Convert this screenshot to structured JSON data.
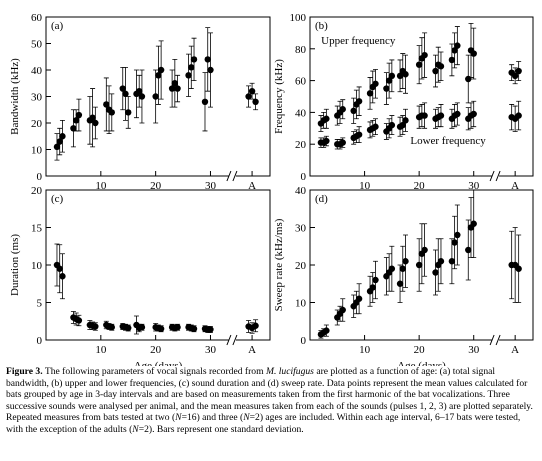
{
  "chart_data": [
    {
      "type": "scatter",
      "label": "(a)",
      "ylabel": "Bandwidth (kHz)",
      "x": [
        2,
        2.5,
        3,
        5,
        5.5,
        6,
        8,
        8.5,
        9,
        11,
        11.5,
        12,
        14,
        14.5,
        15,
        16.5,
        17,
        17.5,
        20,
        20.5,
        21,
        23,
        23.5,
        24,
        26,
        26.5,
        27,
        29,
        29.5,
        30
      ],
      "xlim": [
        0,
        33
      ],
      "xticks": [
        10,
        20,
        30
      ],
      "adult_label": "A",
      "ylim": [
        0,
        60
      ],
      "yticks": [
        0,
        10,
        20,
        30,
        40,
        50,
        60
      ],
      "series": [
        {
          "color": "#000000",
          "values": [
            11,
            13,
            15,
            18,
            21,
            23,
            21,
            22,
            20,
            27,
            25,
            24,
            33,
            31,
            24,
            31,
            32,
            30,
            30,
            38,
            40,
            33,
            35,
            33,
            38,
            41,
            44,
            28,
            44,
            40
          ],
          "errors": [
            5,
            5,
            6,
            7,
            4,
            6,
            9,
            11,
            6,
            10,
            9,
            7,
            8,
            10,
            6,
            9,
            6,
            10,
            10,
            11,
            11,
            7,
            9,
            5,
            8,
            8,
            8,
            11,
            12,
            14
          ],
          "adult_values": [
            30,
            32,
            28
          ],
          "adult_errors": [
            4,
            3,
            3
          ]
        }
      ]
    },
    {
      "type": "scatter",
      "label": "(b)",
      "ylabel": "Frequency (kHz)",
      "x": [
        2,
        2.5,
        3,
        5,
        5.5,
        6,
        8,
        8.5,
        9,
        11,
        11.5,
        12,
        14,
        14.5,
        15,
        16.5,
        17,
        17.5,
        20,
        20.5,
        21,
        23,
        23.5,
        24,
        26,
        26.5,
        27,
        29,
        29.5,
        30
      ],
      "xlim": [
        0,
        33
      ],
      "xticks": [
        10,
        20,
        30
      ],
      "adult_label": "A",
      "ylim": [
        0,
        100
      ],
      "yticks": [
        0,
        20,
        40,
        60,
        80,
        100
      ],
      "series": [
        {
          "name": "Upper frequency",
          "color": "#000000",
          "values": [
            33,
            35,
            36,
            38,
            40,
            42,
            41,
            45,
            47,
            52,
            56,
            58,
            55,
            60,
            63,
            63,
            66,
            64,
            70,
            74,
            76,
            66,
            70,
            69,
            73,
            79,
            82,
            61,
            79,
            77
          ],
          "errors": [
            5,
            5,
            6,
            6,
            7,
            6,
            8,
            9,
            9,
            10,
            10,
            9,
            10,
            11,
            10,
            10,
            11,
            12,
            12,
            13,
            14,
            10,
            11,
            9,
            10,
            11,
            12,
            15,
            17,
            16
          ],
          "adult_values": [
            65,
            63,
            66
          ],
          "adult_errors": [
            5,
            5,
            6
          ]
        },
        {
          "name": "Lower frequency",
          "color": "#000000",
          "values": [
            21,
            21,
            22,
            20,
            20,
            21,
            24,
            25,
            26,
            29,
            30,
            31,
            28,
            30,
            32,
            31,
            32,
            35,
            37,
            38,
            38,
            36,
            37,
            38,
            36,
            38,
            39,
            36,
            38,
            39
          ],
          "errors": [
            3,
            3,
            3,
            3,
            3,
            3,
            4,
            4,
            5,
            5,
            5,
            5,
            5,
            6,
            6,
            6,
            6,
            7,
            7,
            7,
            8,
            6,
            6,
            7,
            6,
            7,
            7,
            7,
            8,
            8
          ],
          "adult_values": [
            37,
            36,
            38
          ],
          "adult_errors": [
            8,
            8,
            9
          ]
        }
      ]
    },
    {
      "type": "scatter",
      "label": "(c)",
      "ylabel": "Duration (ms)",
      "xlabel": "Age (days)",
      "x": [
        2,
        2.5,
        3,
        5,
        5.5,
        6,
        8,
        8.5,
        9,
        11,
        11.5,
        12,
        14,
        14.5,
        15,
        16.5,
        17,
        17.5,
        20,
        20.5,
        21,
        23,
        23.5,
        24,
        26,
        26.5,
        27,
        29,
        29.5,
        30
      ],
      "xlim": [
        0,
        33
      ],
      "xticks": [
        10,
        20,
        30
      ],
      "adult_label": "A",
      "ylim": [
        0,
        20
      ],
      "yticks": [
        0,
        5,
        10,
        15,
        20
      ],
      "series": [
        {
          "color": "#000000",
          "values": [
            10,
            9.5,
            8.5,
            3,
            2.8,
            2.6,
            2,
            1.9,
            1.8,
            2,
            1.8,
            1.7,
            1.8,
            1.7,
            1.6,
            2,
            1.6,
            1.7,
            1.7,
            1.6,
            1.5,
            1.7,
            1.6,
            1.7,
            1.7,
            1.6,
            1.5,
            1.5,
            1.4,
            1.4
          ],
          "errors": [
            2.8,
            3.2,
            3,
            0.8,
            0.8,
            0.7,
            0.6,
            0.5,
            0.5,
            0.5,
            0.4,
            0.4,
            0.4,
            0.4,
            0.4,
            1.2,
            0.5,
            0.4,
            0.5,
            0.4,
            0.4,
            0.4,
            0.4,
            0.4,
            0.4,
            0.4,
            0.4,
            0.4,
            0.4,
            0.4
          ],
          "adult_values": [
            1.8,
            1.6,
            1.9
          ],
          "adult_errors": [
            0.8,
            0.7,
            0.8
          ]
        }
      ]
    },
    {
      "type": "scatter",
      "label": "(d)",
      "ylabel": "Sweep rate (kHz/ms)",
      "xlabel": "Age (days)",
      "x": [
        2,
        2.5,
        3,
        5,
        5.5,
        6,
        8,
        8.5,
        9,
        11,
        11.5,
        12,
        14,
        14.5,
        15,
        16.5,
        17,
        17.5,
        20,
        20.5,
        21,
        23,
        23.5,
        24,
        26,
        26.5,
        27,
        29,
        29.5,
        30
      ],
      "xlim": [
        0,
        33
      ],
      "xticks": [
        10,
        20,
        30
      ],
      "adult_label": "A",
      "ylim": [
        0,
        40
      ],
      "yticks": [
        0,
        10,
        20,
        30,
        40
      ],
      "series": [
        {
          "color": "#000000",
          "values": [
            1.5,
            2,
            2.5,
            6,
            7,
            8,
            9,
            10,
            11,
            13,
            14,
            16,
            17,
            18,
            19,
            15,
            19,
            21,
            20,
            23,
            24,
            18,
            20,
            21,
            21,
            26,
            28,
            24,
            30,
            31
          ],
          "errors": [
            1,
            1,
            1.5,
            2,
            2,
            3,
            3,
            3,
            4,
            4,
            4,
            5,
            5,
            5,
            6,
            5,
            6,
            7,
            7,
            8,
            7,
            6,
            7,
            6,
            6,
            7,
            8,
            8,
            8,
            9
          ],
          "adult_values": [
            20,
            20,
            19
          ],
          "adult_errors": [
            9,
            10,
            9
          ]
        }
      ]
    }
  ],
  "caption": [
    "Figure 3.",
    " The following parameters of vocal signals recorded from ",
    "M. lucifugus",
    " are plotted as a function of age: (a) total signal bandwidth, (b) upper and lower frequencies, (c) sound duration and (d) sweep rate. Data points represent the mean values calculated for bats grouped by age in 3-day intervals and are based on measurements taken from the first harmonic of the bat vocalizations. Three successive sounds were analysed per animal, and the mean measures taken from each of the sounds (pulses 1, 2, 3) are plotted separately. Repeated measures from bats tested at two (",
    "N",
    "=16) and three (",
    "N",
    "=2) ages are included. Within each age interval, 6–17 bats were tested, with the exception of the adults (",
    "N",
    "=2). Bars represent one standard deviation."
  ]
}
